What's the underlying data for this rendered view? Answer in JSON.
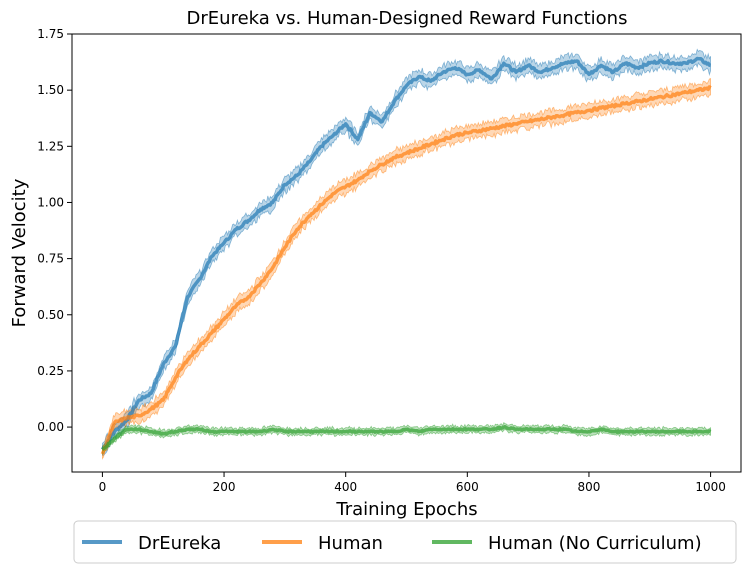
{
  "chart_data": {
    "type": "line",
    "title": "DrEureka vs. Human-Designed Reward Functions",
    "xlabel": "Training Epochs",
    "ylabel": "Forward Velocity",
    "xlim": [
      -50,
      1050
    ],
    "ylim": [
      -0.2,
      1.75
    ],
    "xticks": [
      0,
      200,
      400,
      600,
      800,
      1000
    ],
    "yticks": [
      0.0,
      0.25,
      0.5,
      0.75,
      1.0,
      1.25,
      1.5,
      1.75
    ],
    "xtick_labels": [
      "0",
      "200",
      "400",
      "600",
      "800",
      "1000"
    ],
    "ytick_labels": [
      "0.00",
      "0.25",
      "0.50",
      "0.75",
      "1.00",
      "1.25",
      "1.50",
      "1.75"
    ],
    "grid": false,
    "legend_position": "bottom-outside",
    "series": [
      {
        "name": "DrEureka",
        "color": "#1f77b4",
        "x": [
          0,
          20,
          40,
          60,
          80,
          100,
          120,
          140,
          160,
          180,
          200,
          220,
          240,
          260,
          280,
          300,
          320,
          340,
          360,
          380,
          400,
          420,
          440,
          460,
          480,
          500,
          520,
          540,
          560,
          580,
          600,
          620,
          640,
          660,
          680,
          700,
          720,
          740,
          760,
          780,
          800,
          820,
          840,
          860,
          880,
          900,
          920,
          940,
          960,
          980,
          1000
        ],
        "values": [
          -0.1,
          -0.02,
          0.03,
          0.12,
          0.15,
          0.28,
          0.36,
          0.58,
          0.66,
          0.76,
          0.82,
          0.88,
          0.92,
          0.97,
          1.0,
          1.08,
          1.12,
          1.18,
          1.25,
          1.3,
          1.35,
          1.28,
          1.4,
          1.36,
          1.45,
          1.52,
          1.56,
          1.54,
          1.58,
          1.6,
          1.57,
          1.59,
          1.55,
          1.62,
          1.58,
          1.61,
          1.58,
          1.6,
          1.62,
          1.63,
          1.57,
          1.61,
          1.58,
          1.62,
          1.6,
          1.62,
          1.63,
          1.62,
          1.62,
          1.64,
          1.61
        ],
        "band": 0.03
      },
      {
        "name": "Human",
        "color": "#ff7f0e",
        "x": [
          0,
          20,
          40,
          60,
          80,
          100,
          120,
          140,
          160,
          180,
          200,
          220,
          240,
          260,
          280,
          300,
          320,
          340,
          360,
          380,
          400,
          420,
          440,
          460,
          480,
          500,
          520,
          540,
          560,
          580,
          600,
          620,
          640,
          660,
          680,
          700,
          720,
          740,
          760,
          780,
          800,
          820,
          840,
          860,
          880,
          900,
          920,
          940,
          960,
          980,
          1000
        ],
        "values": [
          -0.12,
          0.02,
          0.04,
          0.05,
          0.08,
          0.12,
          0.22,
          0.3,
          0.36,
          0.42,
          0.48,
          0.54,
          0.58,
          0.64,
          0.71,
          0.8,
          0.88,
          0.94,
          0.99,
          1.04,
          1.07,
          1.1,
          1.14,
          1.17,
          1.2,
          1.22,
          1.24,
          1.26,
          1.28,
          1.3,
          1.31,
          1.32,
          1.33,
          1.34,
          1.35,
          1.36,
          1.37,
          1.38,
          1.39,
          1.4,
          1.41,
          1.42,
          1.43,
          1.44,
          1.45,
          1.46,
          1.47,
          1.48,
          1.49,
          1.5,
          1.51
        ],
        "band": 0.03
      },
      {
        "name": "Human (No Curriculum)",
        "color": "#2ca02c",
        "x": [
          0,
          20,
          40,
          60,
          80,
          100,
          120,
          140,
          160,
          180,
          200,
          220,
          240,
          260,
          280,
          300,
          320,
          340,
          360,
          380,
          400,
          420,
          440,
          460,
          480,
          500,
          520,
          540,
          560,
          580,
          600,
          620,
          640,
          660,
          680,
          700,
          720,
          740,
          760,
          780,
          800,
          820,
          840,
          860,
          880,
          900,
          920,
          940,
          960,
          980,
          1000
        ],
        "values": [
          -0.1,
          -0.05,
          -0.01,
          -0.01,
          -0.02,
          -0.03,
          -0.02,
          -0.01,
          -0.01,
          -0.02,
          -0.02,
          -0.02,
          -0.02,
          -0.02,
          -0.01,
          -0.02,
          -0.02,
          -0.02,
          -0.02,
          -0.02,
          -0.02,
          -0.02,
          -0.02,
          -0.02,
          -0.02,
          -0.01,
          -0.02,
          -0.01,
          -0.01,
          -0.01,
          -0.01,
          -0.01,
          -0.01,
          0.0,
          -0.01,
          -0.01,
          -0.01,
          -0.01,
          -0.01,
          -0.02,
          -0.02,
          -0.01,
          -0.02,
          -0.02,
          -0.02,
          -0.02,
          -0.02,
          -0.02,
          -0.02,
          -0.02,
          -0.02
        ],
        "band": 0.015
      }
    ]
  }
}
